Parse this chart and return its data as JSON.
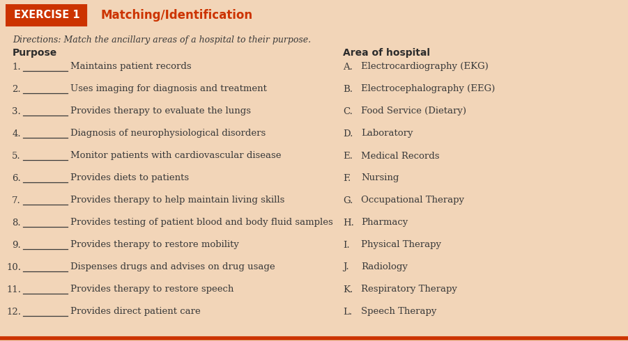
{
  "background_color": "#f2d5b8",
  "header_box_color": "#cc3300",
  "header_box_text": "EXERCISE 1",
  "header_box_text_color": "#ffffff",
  "header_title": "Matching/Identification",
  "header_title_color": "#cc3300",
  "directions_text": "Directions: Match the ancillary areas of a hospital to their purpose.",
  "directions_color": "#3a3a3a",
  "purpose_header": "Purpose",
  "area_header": "Area of hospital",
  "header_color": "#2c2c2c",
  "border_color": "#cc3300",
  "text_color": "#3a3a3a",
  "purposes": [
    "Maintains patient records",
    "Uses imaging for diagnosis and treatment",
    "Provides therapy to evaluate the lungs",
    "Diagnosis of neurophysiological disorders",
    "Monitor patients with cardiovascular disease",
    "Provides diets to patients",
    "Provides therapy to help maintain living skills",
    "Provides testing of patient blood and body fluid samples",
    "Provides therapy to restore mobility",
    "Dispenses drugs and advises on drug usage",
    "Provides therapy to restore speech",
    "Provides direct patient care"
  ],
  "areas": [
    "Electrocardiography (EKG)",
    "Electrocephalography (EEG)",
    "Food Service (Dietary)",
    "Laboratory",
    "Medical Records",
    "Nursing",
    "Occupational Therapy",
    "Pharmacy",
    "Physical Therapy",
    "Radiology",
    "Respiratory Therapy",
    "Speech Therapy"
  ],
  "area_letters": [
    "A.",
    "B.",
    "C.",
    "D.",
    "E.",
    "F.",
    "G.",
    "H.",
    "I.",
    "J.",
    "K.",
    "L."
  ],
  "figwidth": 9.01,
  "figheight": 4.9,
  "dpi": 100
}
